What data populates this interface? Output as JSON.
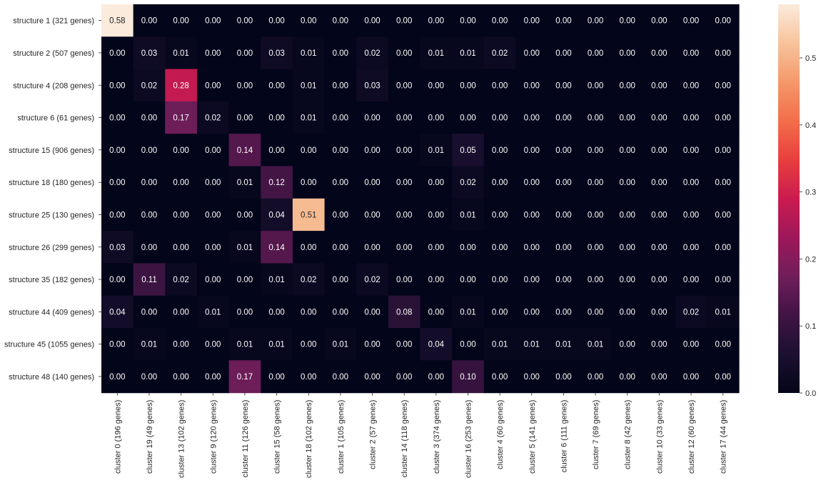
{
  "chart_data": {
    "type": "heatmap",
    "rows": [
      "structure 1 (321 genes)",
      "structure 2 (507 genes)",
      "structure 4 (208 genes)",
      "structure 6 (61 genes)",
      "structure 15 (906 genes)",
      "structure 18 (180 genes)",
      "structure 25 (130 genes)",
      "structure 26 (299 genes)",
      "structure 35 (182 genes)",
      "structure 44 (409 genes)",
      "structure 45 (1055 genes)",
      "structure 48 (140 genes)"
    ],
    "columns": [
      "cluster 0 (196 genes)",
      "cluster 19 (49 genes)",
      "cluster 13 (102 genes)",
      "cluster 9 (120 genes)",
      "cluster 11 (126 genes)",
      "cluster 15 (58 genes)",
      "cluster 18 (102 genes)",
      "cluster 1 (105 genes)",
      "cluster 2 (57 genes)",
      "cluster 14 (118 genes)",
      "cluster 3 (374 genes)",
      "cluster 16 (253 genes)",
      "cluster 4 (60 genes)",
      "cluster 5 (141 genes)",
      "cluster 6 (111 genes)",
      "cluster 7 (69 genes)",
      "cluster 8 (42 genes)",
      "cluster 10 (33 genes)",
      "cluster 12 (60 genes)",
      "cluster 17 (44 genes)"
    ],
    "values": [
      [
        0.58,
        0.0,
        0.0,
        0.0,
        0.0,
        0.0,
        0.0,
        0.0,
        0.0,
        0.0,
        0.0,
        0.0,
        0.0,
        0.0,
        0.0,
        0.0,
        0.0,
        0.0,
        0.0,
        0.0
      ],
      [
        0.0,
        0.03,
        0.01,
        0.0,
        0.0,
        0.03,
        0.01,
        0.0,
        0.02,
        0.0,
        0.01,
        0.01,
        0.02,
        0.0,
        0.0,
        0.0,
        0.0,
        0.0,
        0.0,
        0.0
      ],
      [
        0.0,
        0.02,
        0.28,
        0.0,
        0.0,
        0.0,
        0.01,
        0.0,
        0.03,
        0.0,
        0.0,
        0.0,
        0.0,
        0.0,
        0.0,
        0.0,
        0.0,
        0.0,
        0.0,
        0.0
      ],
      [
        0.0,
        0.0,
        0.17,
        0.02,
        0.0,
        0.0,
        0.01,
        0.0,
        0.0,
        0.0,
        0.0,
        0.0,
        0.0,
        0.0,
        0.0,
        0.0,
        0.0,
        0.0,
        0.0,
        0.0
      ],
      [
        0.0,
        0.0,
        0.0,
        0.0,
        0.14,
        0.0,
        0.0,
        0.0,
        0.0,
        0.0,
        0.01,
        0.05,
        0.0,
        0.0,
        0.0,
        0.0,
        0.0,
        0.0,
        0.0,
        0.0
      ],
      [
        0.0,
        0.0,
        0.0,
        0.0,
        0.01,
        0.12,
        0.0,
        0.0,
        0.0,
        0.0,
        0.0,
        0.02,
        0.0,
        0.0,
        0.0,
        0.0,
        0.0,
        0.0,
        0.0,
        0.0
      ],
      [
        0.0,
        0.0,
        0.0,
        0.0,
        0.0,
        0.04,
        0.51,
        0.0,
        0.0,
        0.0,
        0.0,
        0.01,
        0.0,
        0.0,
        0.0,
        0.0,
        0.0,
        0.0,
        0.0,
        0.0
      ],
      [
        0.03,
        0.0,
        0.0,
        0.0,
        0.01,
        0.14,
        0.0,
        0.0,
        0.0,
        0.0,
        0.0,
        0.0,
        0.0,
        0.0,
        0.0,
        0.0,
        0.0,
        0.0,
        0.0,
        0.0
      ],
      [
        0.0,
        0.11,
        0.02,
        0.0,
        0.0,
        0.01,
        0.02,
        0.0,
        0.02,
        0.0,
        0.0,
        0.0,
        0.0,
        0.0,
        0.0,
        0.0,
        0.0,
        0.0,
        0.0,
        0.0
      ],
      [
        0.04,
        0.0,
        0.0,
        0.01,
        0.0,
        0.0,
        0.0,
        0.0,
        0.0,
        0.08,
        0.0,
        0.01,
        0.0,
        0.0,
        0.0,
        0.0,
        0.0,
        0.0,
        0.02,
        0.01
      ],
      [
        0.0,
        0.01,
        0.0,
        0.0,
        0.01,
        0.01,
        0.0,
        0.01,
        0.0,
        0.0,
        0.04,
        0.0,
        0.01,
        0.01,
        0.01,
        0.01,
        0.0,
        0.0,
        0.0,
        0.0
      ],
      [
        0.0,
        0.0,
        0.0,
        0.0,
        0.17,
        0.0,
        0.0,
        0.0,
        0.0,
        0.0,
        0.0,
        0.1,
        0.0,
        0.0,
        0.0,
        0.0,
        0.0,
        0.0,
        0.0,
        0.0
      ]
    ],
    "value_format": "2 decimals",
    "colormap": "rocket",
    "colorbar": {
      "range": [
        0,
        0.58
      ],
      "ticks": [
        0.0,
        0.1,
        0.2,
        0.3,
        0.4,
        0.5
      ],
      "tick_labels": [
        "0.0",
        "0.1",
        "0.2",
        "0.3",
        "0.4",
        "0.5"
      ]
    },
    "title": "",
    "xlabel": "",
    "ylabel": "",
    "grid": false
  }
}
